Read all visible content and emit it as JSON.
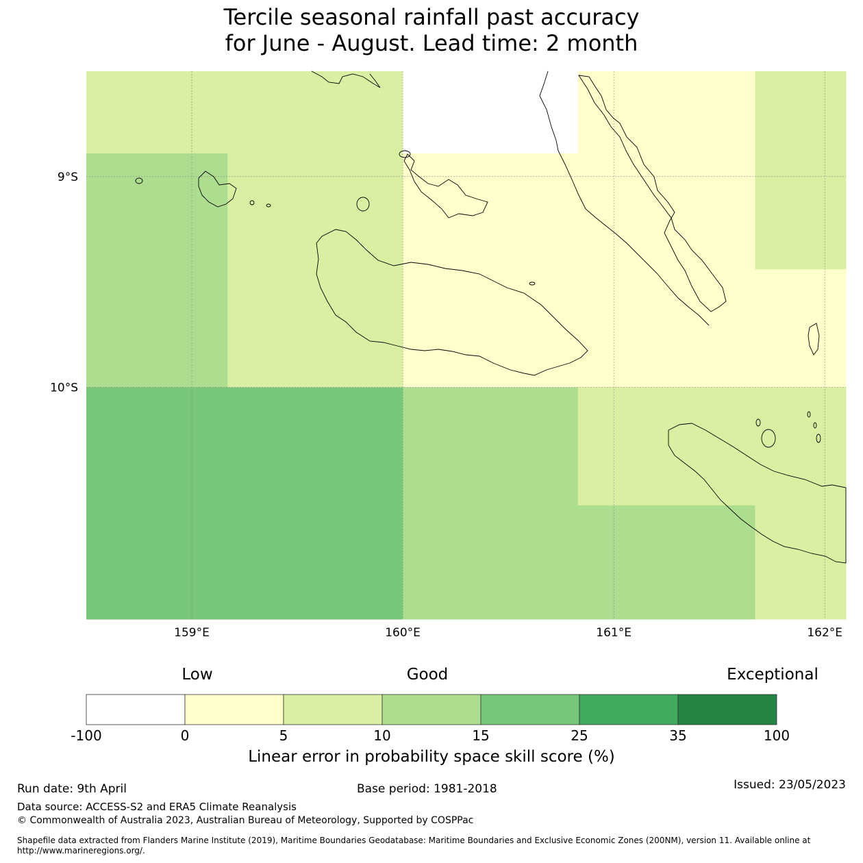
{
  "title_line1": "Tercile seasonal rainfall past accuracy",
  "title_line2": "for June - August. Lead time: 2 month",
  "chart_data": {
    "type": "heatmap",
    "lon_range": [
      158.5,
      162.1
    ],
    "lat_range": [
      -11.1,
      -8.5
    ],
    "x_ticks": [
      159,
      160,
      161,
      162
    ],
    "x_tick_labels": [
      "159°E",
      "160°E",
      "161°E",
      "162°E"
    ],
    "y_ticks": [
      -9,
      -10
    ],
    "y_tick_labels": [
      "9°S",
      "10°S"
    ],
    "cells": [
      {
        "lon": [
          158.5,
          160.0
        ],
        "lat": [
          -8.89,
          -8.5
        ],
        "value": 7.5
      },
      {
        "lon": [
          160.0,
          160.83
        ],
        "lat": [
          -8.89,
          -8.5
        ],
        "value": -50
      },
      {
        "lon": [
          160.83,
          161.67
        ],
        "lat": [
          -8.89,
          -8.5
        ],
        "value": 2.5
      },
      {
        "lon": [
          161.67,
          162.1
        ],
        "lat": [
          -8.89,
          -8.5
        ],
        "value": 7.5
      },
      {
        "lon": [
          158.5,
          159.17
        ],
        "lat": [
          -10.0,
          -8.89
        ],
        "value": 12.5
      },
      {
        "lon": [
          159.17,
          160.0
        ],
        "lat": [
          -10.0,
          -8.89
        ],
        "value": 7.5
      },
      {
        "lon": [
          160.0,
          161.67
        ],
        "lat": [
          -10.0,
          -8.89
        ],
        "value": 2.5
      },
      {
        "lon": [
          161.67,
          162.1
        ],
        "lat": [
          -9.44,
          -8.89
        ],
        "value": 7.5
      },
      {
        "lon": [
          161.67,
          162.1
        ],
        "lat": [
          -10.0,
          -9.44
        ],
        "value": 2.5
      },
      {
        "lon": [
          158.5,
          160.0
        ],
        "lat": [
          -11.1,
          -10.0
        ],
        "value": 20
      },
      {
        "lon": [
          160.0,
          160.83
        ],
        "lat": [
          -11.1,
          -10.0
        ],
        "value": 12.5
      },
      {
        "lon": [
          160.83,
          162.1
        ],
        "lat": [
          -10.56,
          -10.0
        ],
        "value": 7.5
      },
      {
        "lon": [
          160.83,
          161.67
        ],
        "lat": [
          -11.1,
          -10.56
        ],
        "value": 12.5
      },
      {
        "lon": [
          161.67,
          162.1
        ],
        "lat": [
          -11.1,
          -10.56
        ],
        "value": 7.5
      }
    ],
    "colorbar": {
      "bounds": [
        "-100",
        "0",
        "5",
        "10",
        "15",
        "25",
        "35",
        "100"
      ],
      "colors": [
        "#ffffff",
        "#ffffcc",
        "#d9f0a3",
        "#addd8e",
        "#78c679",
        "#41ab5d",
        "#238443"
      ],
      "categories": [
        "Low",
        "Good",
        "Exceptional"
      ],
      "label": "Linear error in probability space skill score (%)"
    },
    "coastline_color": "#000000",
    "gridline_color": "#888888"
  },
  "footer": {
    "run_date": "Run date: 9th April",
    "base_period": "Base period: 1981-2018",
    "issued": "Issued: 23/05/2023",
    "data_source": "Data source: ACCESS-S2 and ERA5 Climate Reanalysis",
    "copyright": "© Commonwealth of Australia 2023, Australian Bureau of Meteorology, Supported by COSPPac",
    "shapefile": "Shapefile data extracted from Flanders Marine Institute (2019), Maritime Boundaries Geodatabase: Maritime Boundaries and Exclusive Economic Zones (200NM), version 11. Available online at http://www.marineregions.org/."
  }
}
